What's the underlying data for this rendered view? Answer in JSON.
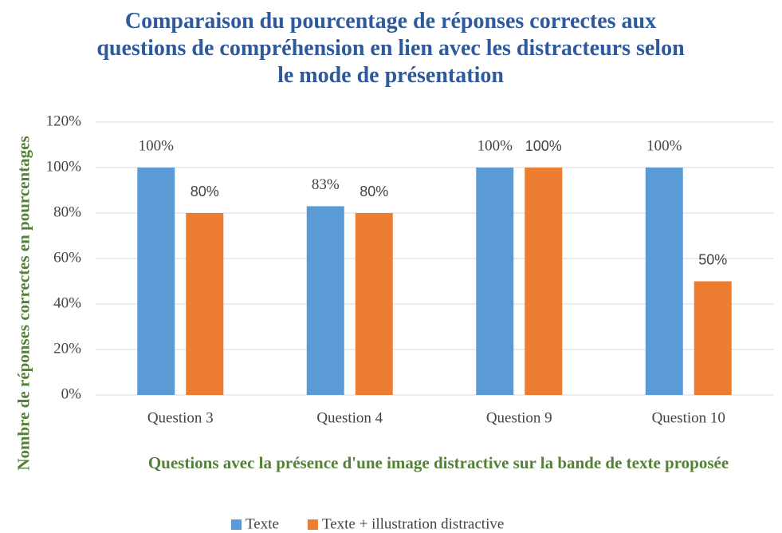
{
  "chart_data": {
    "type": "bar",
    "title": "Comparaison du pourcentage de réponses correctes aux questions de compréhension en lien avec les distracteurs selon le mode de présentation",
    "x_label": "Questions avec la présence d'une image distractive sur la bande de texte proposée",
    "y_label": "Nombre de réponses correctes en pourcentages",
    "categories": [
      "Question 3",
      "Question 4",
      "Question 9",
      "Question 10"
    ],
    "series": [
      {
        "name": "Texte",
        "color": "#5b9bd5",
        "values": [
          100,
          83,
          100,
          100
        ],
        "value_labels": [
          "100%",
          "83%",
          "100%",
          "100%"
        ]
      },
      {
        "name": "Texte + illustration distractive",
        "color": "#ed7d31",
        "values": [
          80,
          80,
          100,
          50
        ],
        "value_labels": [
          "80%",
          "80%",
          "100%",
          "50%"
        ]
      }
    ],
    "ylim": [
      0,
      120
    ],
    "yticks": [
      {
        "value": 0,
        "label": "0%"
      },
      {
        "value": 20,
        "label": "20%"
      },
      {
        "value": 40,
        "label": "40%"
      },
      {
        "value": 60,
        "label": "60%"
      },
      {
        "value": 80,
        "label": "80%"
      },
      {
        "value": 100,
        "label": "100%"
      },
      {
        "value": 120,
        "label": "120%"
      }
    ],
    "grid": true,
    "legend": "bottom"
  }
}
